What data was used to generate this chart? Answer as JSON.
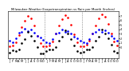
{
  "title": "Milwaukee Weather Evapotranspiration vs Rain per Month (Inches)",
  "title_fontsize": 2.8,
  "background": "#ffffff",
  "xlim": [
    -0.5,
    35.5
  ],
  "ylim": [
    -2.5,
    8.0
  ],
  "yticks": [
    0,
    1,
    2,
    3,
    4,
    5,
    6,
    7
  ],
  "ytick_labels": [
    "0",
    "1",
    "2",
    "3",
    "4",
    "5",
    "6",
    "7"
  ],
  "month_labels": [
    "J",
    "F",
    "M",
    "A",
    "M",
    "J",
    "J",
    "A",
    "S",
    "O",
    "N",
    "D",
    "J",
    "F",
    "M",
    "A",
    "M",
    "J",
    "J",
    "A",
    "S",
    "O",
    "N",
    "D",
    "J",
    "F",
    "M",
    "A",
    "M",
    "J",
    "J",
    "A",
    "S",
    "O",
    "N",
    "D"
  ],
  "vlines": [
    11.5,
    23.5
  ],
  "et_data": [
    0.3,
    0.5,
    1.2,
    2.8,
    4.5,
    6.0,
    7.0,
    6.5,
    4.8,
    2.6,
    0.9,
    0.2,
    0.2,
    0.5,
    1.3,
    3.0,
    4.8,
    6.2,
    7.2,
    6.7,
    5.0,
    2.9,
    1.1,
    0.3,
    0.2,
    0.6,
    1.4,
    3.1,
    4.9,
    6.4,
    7.4,
    6.8,
    5.2,
    3.1,
    1.3,
    0.4
  ],
  "rain_data": [
    1.4,
    1.1,
    2.0,
    3.2,
    3.5,
    4.2,
    3.6,
    3.9,
    3.3,
    2.6,
    2.2,
    1.6,
    1.1,
    0.9,
    1.8,
    3.0,
    3.3,
    3.9,
    3.4,
    3.7,
    3.1,
    2.4,
    2.0,
    1.4,
    1.2,
    1.0,
    1.9,
    3.1,
    3.4,
    4.0,
    3.5,
    3.8,
    3.2,
    2.5,
    2.1,
    1.5
  ],
  "diff_data": [
    -1.1,
    -0.6,
    -0.8,
    -0.4,
    1.0,
    1.8,
    3.4,
    2.6,
    1.5,
    0.0,
    -1.3,
    -1.4,
    -0.9,
    -0.4,
    -0.5,
    0.0,
    1.5,
    2.3,
    3.8,
    3.0,
    1.9,
    0.5,
    -0.9,
    -1.1,
    -1.0,
    -0.4,
    -0.5,
    0.0,
    1.5,
    2.4,
    3.9,
    3.0,
    2.0,
    0.6,
    -0.8,
    -1.1
  ],
  "et_color": "#ff0000",
  "rain_color": "#0000ff",
  "diff_color": "#000000",
  "marker_size": 1.8,
  "grid_color": "#888888",
  "tick_fontsize": 2.5,
  "title_color": "#000000"
}
